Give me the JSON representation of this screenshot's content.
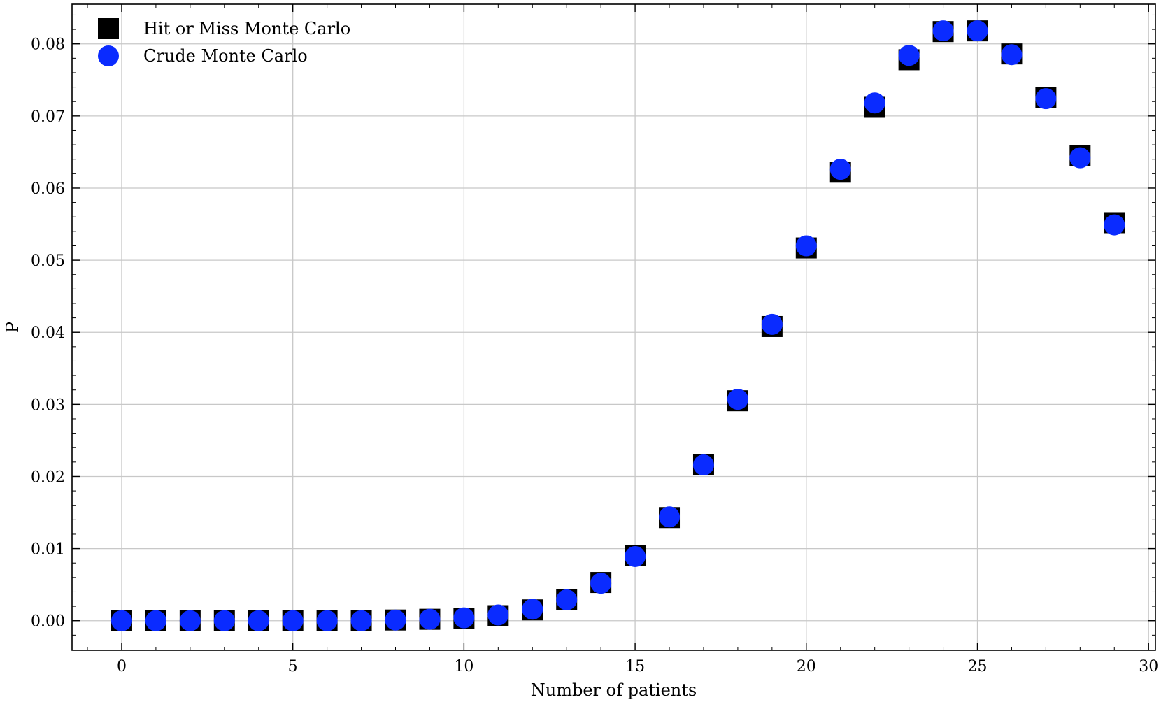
{
  "chart_data": {
    "type": "scatter",
    "title": "",
    "xlabel": "Number of patients",
    "ylabel": "P",
    "xlim": [
      -1.45,
      30.2
    ],
    "ylim": [
      -0.0041,
      0.0855
    ],
    "grid": true,
    "legend_position": "top-left",
    "x_ticks": [
      0,
      5,
      10,
      15,
      20,
      25,
      30
    ],
    "y_ticks": [
      0.0,
      0.01,
      0.02,
      0.03,
      0.04,
      0.05,
      0.06,
      0.07,
      0.08
    ],
    "x_tick_labels": [
      "0",
      "5",
      "10",
      "15",
      "20",
      "25",
      "30"
    ],
    "y_tick_labels": [
      "0.00",
      "0.01",
      "0.02",
      "0.03",
      "0.04",
      "0.05",
      "0.06",
      "0.07",
      "0.08"
    ],
    "x": [
      0,
      1,
      2,
      3,
      4,
      5,
      6,
      7,
      8,
      9,
      10,
      11,
      12,
      13,
      14,
      15,
      16,
      17,
      18,
      19,
      20,
      21,
      22,
      23,
      24,
      25,
      26,
      27,
      28,
      29
    ],
    "series": [
      {
        "name": "Hit or Miss Monte Carlo",
        "marker": "square",
        "color": "#000000",
        "values": [
          0.0,
          0.0,
          0.0,
          0.0,
          0.0,
          0.0,
          0.0,
          0.0,
          0.0001,
          0.0002,
          0.0003,
          0.0007,
          0.0015,
          0.0029,
          0.0053,
          0.009,
          0.0143,
          0.0216,
          0.0305,
          0.0408,
          0.0517,
          0.0622,
          0.0712,
          0.0778,
          0.0817,
          0.0818,
          0.0786,
          0.0726,
          0.0645,
          0.0552
        ]
      },
      {
        "name": "Crude Monte Carlo",
        "marker": "circle",
        "color": "#0a2bff",
        "values": [
          0.0,
          0.0,
          0.0,
          0.0,
          0.0,
          0.0,
          0.0,
          0.0,
          0.0001,
          0.0002,
          0.0004,
          0.0008,
          0.0016,
          0.0029,
          0.0052,
          0.0089,
          0.0144,
          0.0216,
          0.0307,
          0.0411,
          0.052,
          0.0626,
          0.0718,
          0.0784,
          0.0818,
          0.0818,
          0.0785,
          0.0724,
          0.0642,
          0.0549
        ]
      }
    ]
  }
}
